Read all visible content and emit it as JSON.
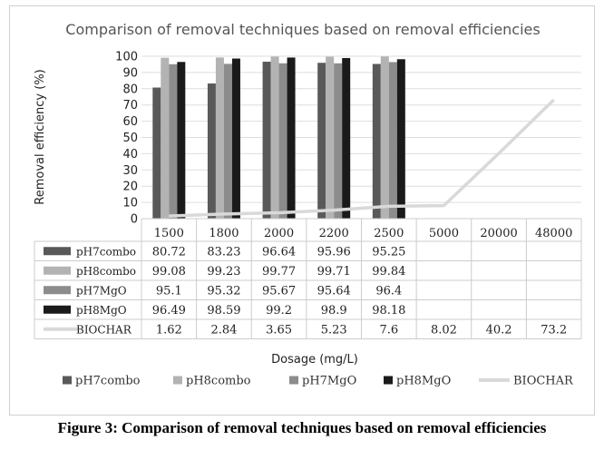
{
  "figure_caption": "Figure 3: Comparison of removal techniques based on removal efficiencies",
  "chart_data": {
    "type": "bar",
    "title": "Comparison of removal techniques based on removal efficiencies",
    "xlabel": "Dosage (mg/L)",
    "ylabel": "Removal efficiency (%)",
    "ylim": [
      0,
      100
    ],
    "yticks": [
      "0",
      "10",
      "20",
      "30",
      "40",
      "50",
      "60",
      "70",
      "80",
      "90",
      "100"
    ],
    "grid": true,
    "legend_position": "bottom",
    "data_table": true,
    "categories": [
      "1500",
      "1800",
      "2000",
      "2200",
      "2500",
      "5000",
      "20000",
      "48000"
    ],
    "series": [
      {
        "name": "pH7combo",
        "type": "bar",
        "color": "#595959",
        "values": [
          80.72,
          83.23,
          96.64,
          95.96,
          95.25,
          null,
          null,
          null
        ],
        "display": [
          "80.72",
          "83.23",
          "96.64",
          "95.96",
          "95.25",
          "",
          "",
          ""
        ]
      },
      {
        "name": "pH8combo",
        "type": "bar",
        "color": "#b3b3b3",
        "values": [
          99.08,
          99.23,
          99.77,
          99.71,
          99.84,
          null,
          null,
          null
        ],
        "display": [
          "99.08",
          "99.23",
          "99.77",
          "99.71",
          "99.84",
          "",
          "",
          ""
        ]
      },
      {
        "name": "pH7MgO",
        "type": "bar",
        "color": "#8c8c8c",
        "values": [
          95.1,
          95.32,
          95.67,
          95.64,
          96.4,
          null,
          null,
          null
        ],
        "display": [
          "95.1",
          "95.32",
          "95.67",
          "95.64",
          "96.4",
          "",
          "",
          ""
        ]
      },
      {
        "name": "pH8MgO",
        "type": "bar",
        "color": "#1a1a1a",
        "values": [
          96.49,
          98.59,
          99.2,
          98.9,
          98.18,
          null,
          null,
          null
        ],
        "display": [
          "96.49",
          "98.59",
          "99.2",
          "98.9",
          "98.18",
          "",
          "",
          ""
        ]
      },
      {
        "name": "BIOCHAR",
        "type": "line",
        "color": "#d9d9d9",
        "values": [
          1.62,
          2.84,
          3.65,
          5.23,
          7.6,
          8.02,
          40.2,
          73.2
        ],
        "display": [
          "1.62",
          "2.84",
          "3.65",
          "5.23",
          "7.6",
          "8.02",
          "40.2",
          "73.2"
        ]
      }
    ]
  }
}
